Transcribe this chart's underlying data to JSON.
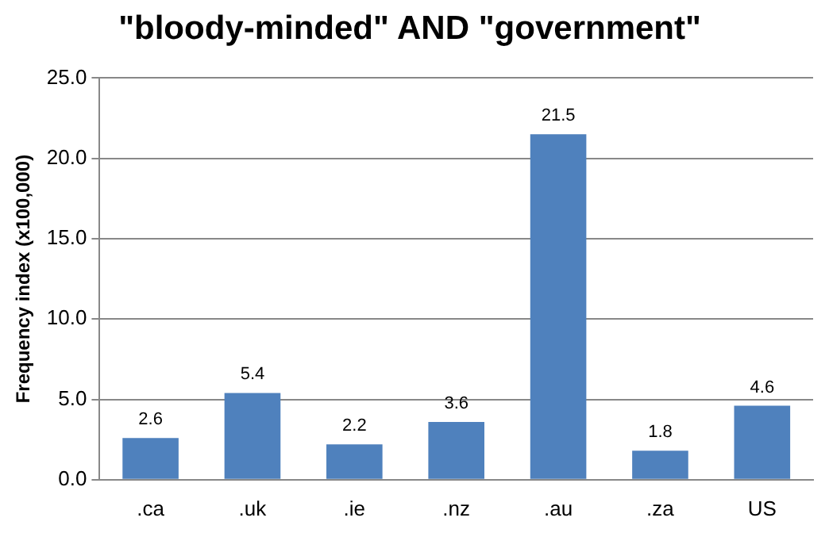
{
  "chart_data": {
    "type": "bar",
    "title": "\"bloody-minded\" AND \"government\"",
    "ylabel": "Frequency index (x100,000)",
    "categories": [
      ".ca",
      ".uk",
      ".ie",
      ".nz",
      ".au",
      ".za",
      "US"
    ],
    "values": [
      2.6,
      5.4,
      2.2,
      3.6,
      21.5,
      1.8,
      4.6
    ],
    "color": "#4f81bd",
    "ylim": [
      0,
      25
    ],
    "yticks": [
      {
        "value": 0,
        "label": "0.0"
      },
      {
        "value": 5,
        "label": "5.0"
      },
      {
        "value": 10,
        "label": "10.0"
      },
      {
        "value": 15,
        "label": "15.0"
      },
      {
        "value": 20,
        "label": "20.0"
      },
      {
        "value": 25,
        "label": "25.0"
      }
    ],
    "grid": "y",
    "data_labels": true,
    "legend": false
  }
}
